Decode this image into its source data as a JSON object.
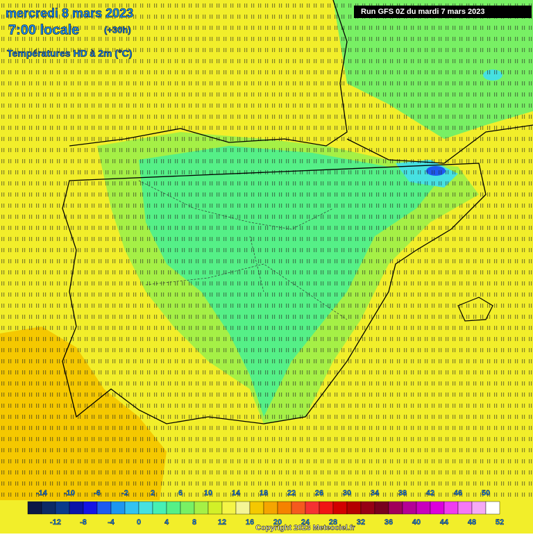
{
  "header": {
    "date": "mercredi 8 mars 2023",
    "time": "7:00 locale",
    "lead": "(+30h)",
    "variable": "Températures HD à 2m (°C)",
    "run": "Run GFS 0Z du mardi 7 mars 2023"
  },
  "scale": {
    "labels": [
      -14,
      -12,
      -10,
      -8,
      -6,
      -4,
      -2,
      0,
      2,
      4,
      6,
      8,
      10,
      12,
      14,
      16,
      18,
      20,
      22,
      24,
      26,
      28,
      30,
      32,
      34,
      36,
      38,
      40,
      42,
      44,
      46,
      48,
      50,
      52
    ],
    "colors": [
      "#0b1846",
      "#0b2a66",
      "#0a3a8c",
      "#0a14a8",
      "#1414e6",
      "#1e5af0",
      "#1e96f0",
      "#32c3f0",
      "#46e1e1",
      "#46f0b4",
      "#55f087",
      "#78f064",
      "#a5f046",
      "#d2f028",
      "#f5f546",
      "#f5f596",
      "#f5c800",
      "#f5a500",
      "#f58200",
      "#f55a1e",
      "#f53232",
      "#f01414",
      "#d20000",
      "#b40000",
      "#960014",
      "#78001e",
      "#a0005a",
      "#b40096",
      "#c800be",
      "#dc00dc",
      "#f03cf0",
      "#f578f5",
      "#f5aaf5",
      "#ffffff"
    ]
  },
  "footer": {
    "copyright": "Copyright 2023 Meteociel.fr"
  }
}
